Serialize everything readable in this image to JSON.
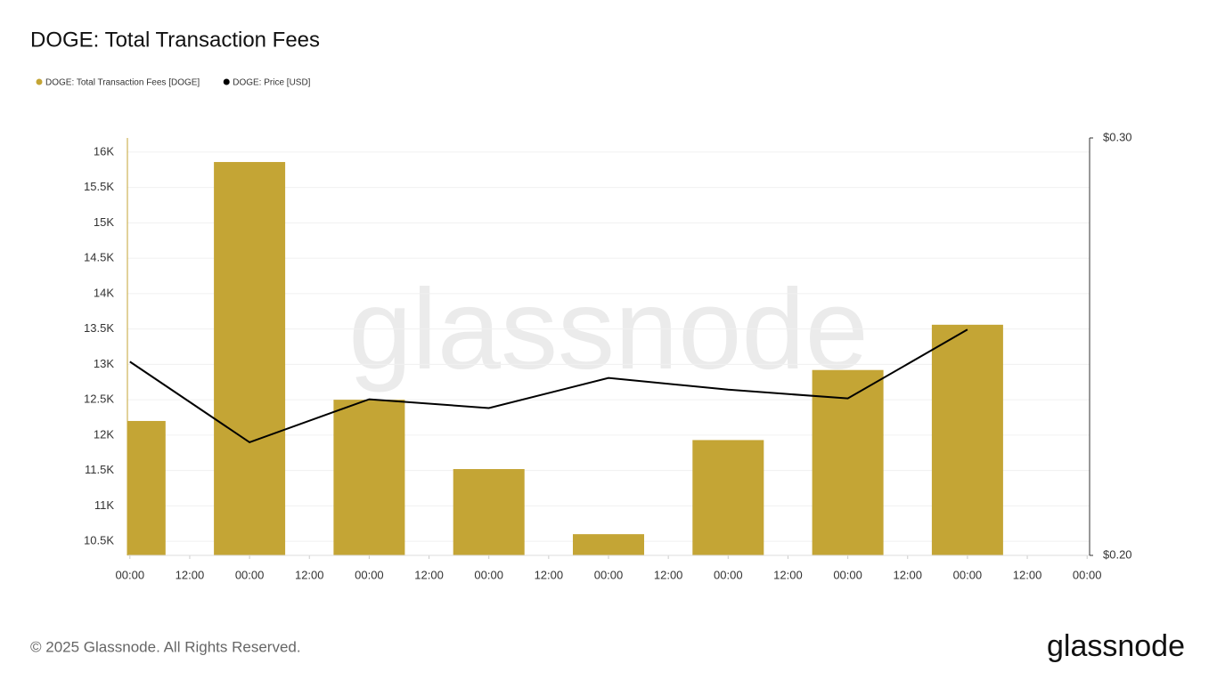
{
  "chart_data": {
    "type": "bar",
    "title": "DOGE: Total Transaction Fees",
    "x": [
      0,
      24,
      48,
      72,
      96,
      120,
      144,
      168
    ],
    "xlim": [
      -0.5,
      192.5
    ],
    "xticks": [
      {
        "value": 0,
        "label": "00:00"
      },
      {
        "value": 12,
        "label": "12:00"
      },
      {
        "value": 24,
        "label": "00:00"
      },
      {
        "value": 36,
        "label": "12:00"
      },
      {
        "value": 48,
        "label": "00:00"
      },
      {
        "value": 60,
        "label": "12:00"
      },
      {
        "value": 72,
        "label": "00:00"
      },
      {
        "value": 84,
        "label": "12:00"
      },
      {
        "value": 96,
        "label": "00:00"
      },
      {
        "value": 108,
        "label": "12:00"
      },
      {
        "value": 120,
        "label": "00:00"
      },
      {
        "value": 132,
        "label": "12:00"
      },
      {
        "value": 144,
        "label": "00:00"
      },
      {
        "value": 156,
        "label": "12:00"
      },
      {
        "value": 168,
        "label": "00:00"
      },
      {
        "value": 180,
        "label": "12:00"
      },
      {
        "value": 192,
        "label": "00:00"
      }
    ],
    "ylim": [
      10300,
      16200
    ],
    "yticks": [
      {
        "value": 10500,
        "label": "10.5K"
      },
      {
        "value": 11000,
        "label": "11K"
      },
      {
        "value": 11500,
        "label": "11.5K"
      },
      {
        "value": 12000,
        "label": "12K"
      },
      {
        "value": 12500,
        "label": "12.5K"
      },
      {
        "value": 13000,
        "label": "13K"
      },
      {
        "value": 13500,
        "label": "13.5K"
      },
      {
        "value": 14000,
        "label": "14K"
      },
      {
        "value": 14500,
        "label": "14.5K"
      },
      {
        "value": 15000,
        "label": "15K"
      },
      {
        "value": 15500,
        "label": "15.5K"
      },
      {
        "value": 16000,
        "label": "16K"
      }
    ],
    "y2lim": [
      0.2,
      0.3
    ],
    "y2ticks": [
      {
        "value": 0.2,
        "label": "$0.20"
      },
      {
        "value": 0.3,
        "label": "$0.30"
      }
    ],
    "grid": true,
    "series": [
      {
        "name": "DOGE: Total Transaction Fees [DOGE]",
        "color": "#c4a535",
        "type": "bar",
        "values": [
          12200,
          15860,
          12500,
          11520,
          10600,
          11930,
          12920,
          13560
        ]
      },
      {
        "name": "DOGE: Price [USD]",
        "color": "#000000",
        "type": "line",
        "axis": "y2",
        "values": [
          0.2464,
          0.2271,
          0.2374,
          0.2353,
          0.2425,
          0.2397,
          0.2376,
          0.2541
        ]
      }
    ]
  },
  "watermark": "glassnode",
  "copyright": "© 2025 Glassnode. All Rights Reserved.",
  "logo": "glassnode"
}
